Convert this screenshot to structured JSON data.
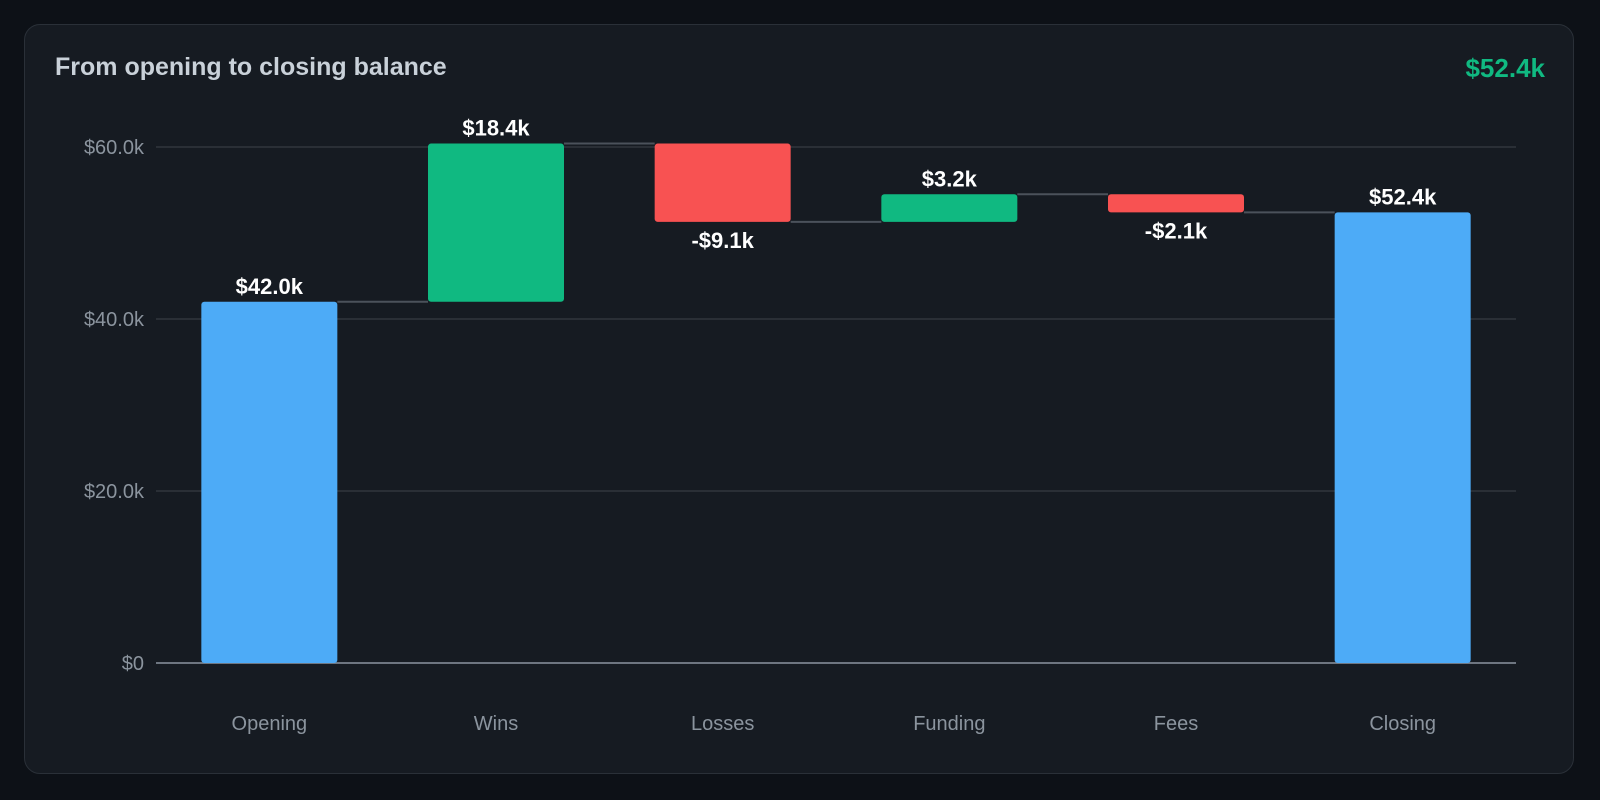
{
  "card": {
    "title": "From opening to closing balance",
    "total": "$52.4k",
    "total_color": "#10b981"
  },
  "chart_data": {
    "type": "bar",
    "subtype": "waterfall",
    "title": "From opening to closing balance",
    "xlabel": "",
    "ylabel": "",
    "ylim": [
      0,
      60000
    ],
    "grid": true,
    "yticks": [
      {
        "value": 0,
        "label": "$0"
      },
      {
        "value": 20000,
        "label": "$20.0k"
      },
      {
        "value": 40000,
        "label": "$40.0k"
      },
      {
        "value": 60000,
        "label": "$60.0k"
      }
    ],
    "categories": [
      "Opening",
      "Wins",
      "Losses",
      "Funding",
      "Fees",
      "Closing"
    ],
    "steps": [
      {
        "category": "Opening",
        "kind": "total",
        "value": 42000,
        "label": "$42.0k"
      },
      {
        "category": "Wins",
        "kind": "increase",
        "value": 18400,
        "label": "$18.4k"
      },
      {
        "category": "Losses",
        "kind": "decrease",
        "value": -9100,
        "label": "-$9.1k"
      },
      {
        "category": "Funding",
        "kind": "increase",
        "value": 3200,
        "label": "$3.2k"
      },
      {
        "category": "Fees",
        "kind": "decrease",
        "value": -2100,
        "label": "-$2.1k"
      },
      {
        "category": "Closing",
        "kind": "total",
        "value": 52400,
        "label": "$52.4k"
      }
    ],
    "colors": {
      "total": "#4dabf7",
      "increase": "#10b981",
      "decrease": "#f85252",
      "grid": "#30363d",
      "axis": "#6e7681",
      "connector": "#4b525b"
    }
  }
}
